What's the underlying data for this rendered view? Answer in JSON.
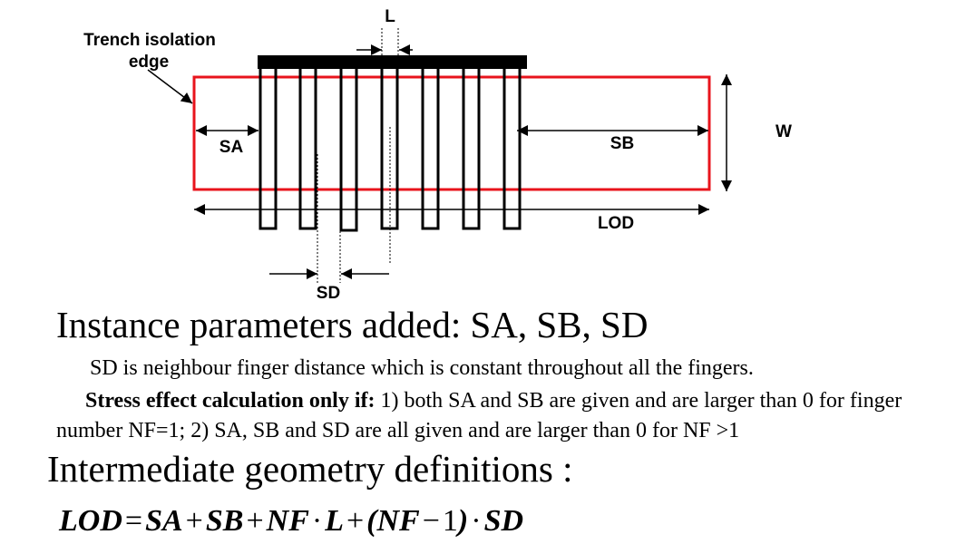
{
  "diagram": {
    "labels": {
      "trench_line1": "Trench isolation",
      "trench_line2": "edge",
      "L": "L",
      "SA": "SA",
      "SB": "SB",
      "W": "W",
      "LOD": "LOD",
      "SD": "SD"
    },
    "colors": {
      "active_region": "#e8141c",
      "fingers": "#000000"
    }
  },
  "text": {
    "heading1": "Instance parameters added:  SA, SB, SD",
    "sd_note": "SD is neighbour finger distance which is constant throughout all the fingers.",
    "stress_bold": "Stress effect calculation only if:",
    "stress_rest": " 1) both SA and SB are given and are larger than 0 for finger number NF=1;   2) SA, SB and SD are all given and are larger than 0 for NF >1",
    "heading2": "Intermediate geometry definitions :"
  },
  "formula": {
    "lhs": "LOD",
    "eq": "=",
    "t1": "SA",
    "p1": "+",
    "t2": "SB",
    "p2": "+",
    "t3": "NF",
    "dot1": "·",
    "t4": "L",
    "p3": "+",
    "lp": "(",
    "t5": "NF",
    "minus": "−",
    "one": "1",
    "rp": ")",
    "dot2": "·",
    "t6": "SD"
  }
}
